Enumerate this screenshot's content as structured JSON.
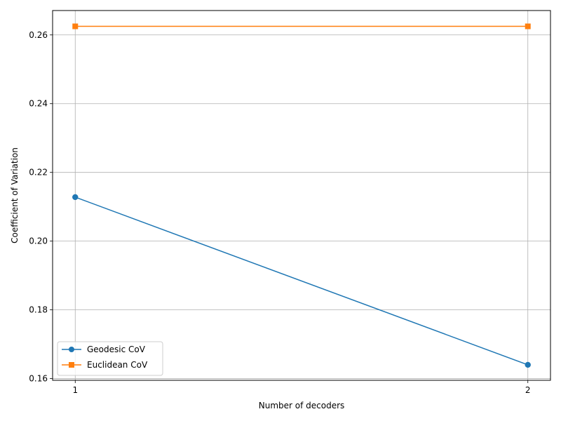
{
  "chart_data": {
    "type": "line",
    "title": "",
    "xlabel": "Number of decoders",
    "ylabel": "Coefficient of Variation",
    "x": [
      1,
      2
    ],
    "x_ticks": [
      "1",
      "2"
    ],
    "xlim": [
      0.95,
      2.05
    ],
    "ylim": [
      0.1595,
      0.2671
    ],
    "y_ticks": [
      "0.16",
      "0.18",
      "0.20",
      "0.22",
      "0.24",
      "0.26"
    ],
    "y_tick_values": [
      0.16,
      0.18,
      0.2,
      0.22,
      0.24,
      0.26
    ],
    "grid": true,
    "legend_position": "lower-left",
    "series": [
      {
        "name": "Geodesic CoV",
        "values": [
          0.2128,
          0.164
        ],
        "color": "#1f77b4",
        "marker": "circle"
      },
      {
        "name": "Euclidean CoV",
        "values": [
          0.2625,
          0.2625
        ],
        "color": "#ff7f0e",
        "marker": "square"
      }
    ]
  }
}
